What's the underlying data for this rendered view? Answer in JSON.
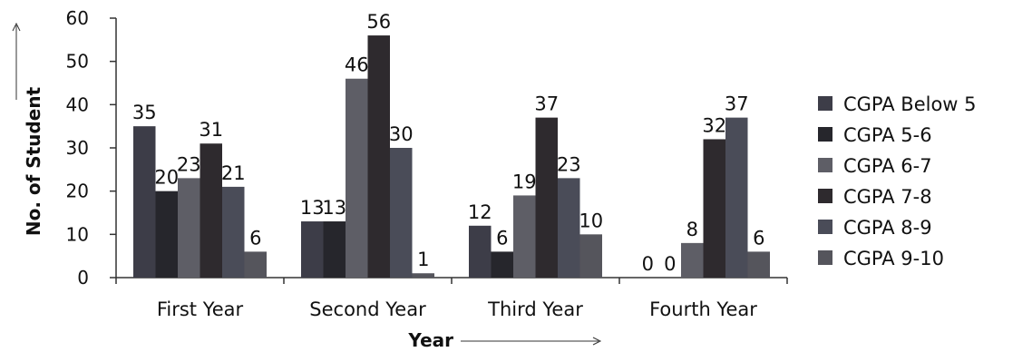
{
  "chart_data": {
    "type": "bar",
    "xlabel": "Year",
    "ylabel": "No. of Student",
    "ylim": [
      0,
      60
    ],
    "yticks": [
      0,
      10,
      20,
      30,
      40,
      50,
      60
    ],
    "grid": false,
    "legend_position": "right",
    "categories": [
      "First Year",
      "Second Year",
      "Third Year",
      "Fourth Year"
    ],
    "series": [
      {
        "name": "CGPA Below 5",
        "color": "#3d3d48",
        "values": [
          35,
          13,
          12,
          0
        ]
      },
      {
        "name": "CGPA 5-6",
        "color": "#26262c",
        "values": [
          20,
          13,
          6,
          0
        ]
      },
      {
        "name": "CGPA 6-7",
        "color": "#5e5e66",
        "values": [
          23,
          46,
          19,
          8
        ]
      },
      {
        "name": "CGPA 7-8",
        "color": "#2e2a2e",
        "values": [
          31,
          56,
          37,
          32
        ]
      },
      {
        "name": "CGPA 8-9",
        "color": "#4a4c58",
        "values": [
          21,
          30,
          23,
          37
        ]
      },
      {
        "name": "CGPA 9-10",
        "color": "#55555c",
        "values": [
          6,
          1,
          10,
          6
        ]
      }
    ]
  }
}
